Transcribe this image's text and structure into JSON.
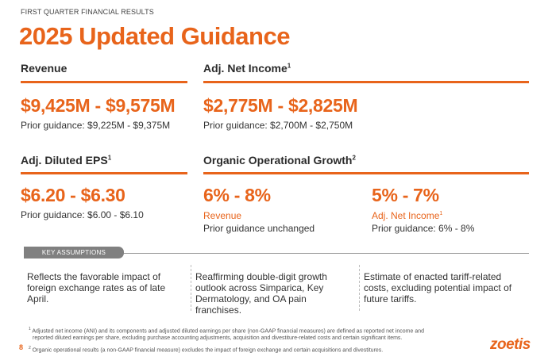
{
  "header": {
    "eyebrow": "FIRST QUARTER  FINANCIAL RESULTS",
    "title": "2025 Updated Guidance"
  },
  "revenue": {
    "heading": "Revenue",
    "value": "$9,425M - $9,575M",
    "prior": "Prior guidance: $9,225M - $9,375M"
  },
  "adj_net_income": {
    "heading": "Adj. Net Income",
    "footnote_ref": "1",
    "value": "$2,775M - $2,825M",
    "prior": "Prior guidance: $2,700M - $2,750M"
  },
  "adj_diluted_eps": {
    "heading": "Adj. Diluted EPS",
    "footnote_ref": "1",
    "value": "$6.20 - $6.30",
    "prior": "Prior guidance: $6.00 - $6.10"
  },
  "organic_growth": {
    "heading": "Organic Operational Growth",
    "footnote_ref": "2",
    "revenue_value": "6% - 8%",
    "revenue_label": "Revenue",
    "revenue_prior": "Prior guidance unchanged",
    "ani_value": "5% - 7%",
    "ani_label": "Adj. Net Income",
    "ani_footnote_ref": "1",
    "ani_prior": "Prior guidance: 6% - 8%"
  },
  "key_assumptions": {
    "tab_label": "KEY ASSUMPTIONS",
    "items": [
      {
        "line1": "Reflects the favorable impact of",
        "line2": "foreign exchange rates as of late April.",
        "line3": ""
      },
      {
        "line1": "Reaffirming double-digit growth",
        "line2": "outlook across Simparica, Key",
        "line3": "Dermatology, and OA pain franchises."
      },
      {
        "line1": "Estimate of enacted tariff-related",
        "line2": "costs, excluding potential impact of",
        "line3": "future tariffs."
      }
    ]
  },
  "footnotes": {
    "fn1_ref": "1",
    "fn1_line1": "Adjusted net income (ANI) and its components and adjusted diluted earnings per share (non-GAAP financial measures) are defined as reported net income and",
    "fn1_line2": "reported diluted earnings per share, excluding purchase accounting adjustments, acquisition and divestiture-related costs and certain significant items.",
    "fn2_ref": "2",
    "fn2_line1": "Organic operational results (a non-GAAP financial measure) excludes the impact of foreign exchange and certain acquisitions and divestitures."
  },
  "page_number": "8",
  "logo_text": "zoetis",
  "colors": {
    "accent": "#e8641b",
    "tab_gray": "#808080"
  }
}
